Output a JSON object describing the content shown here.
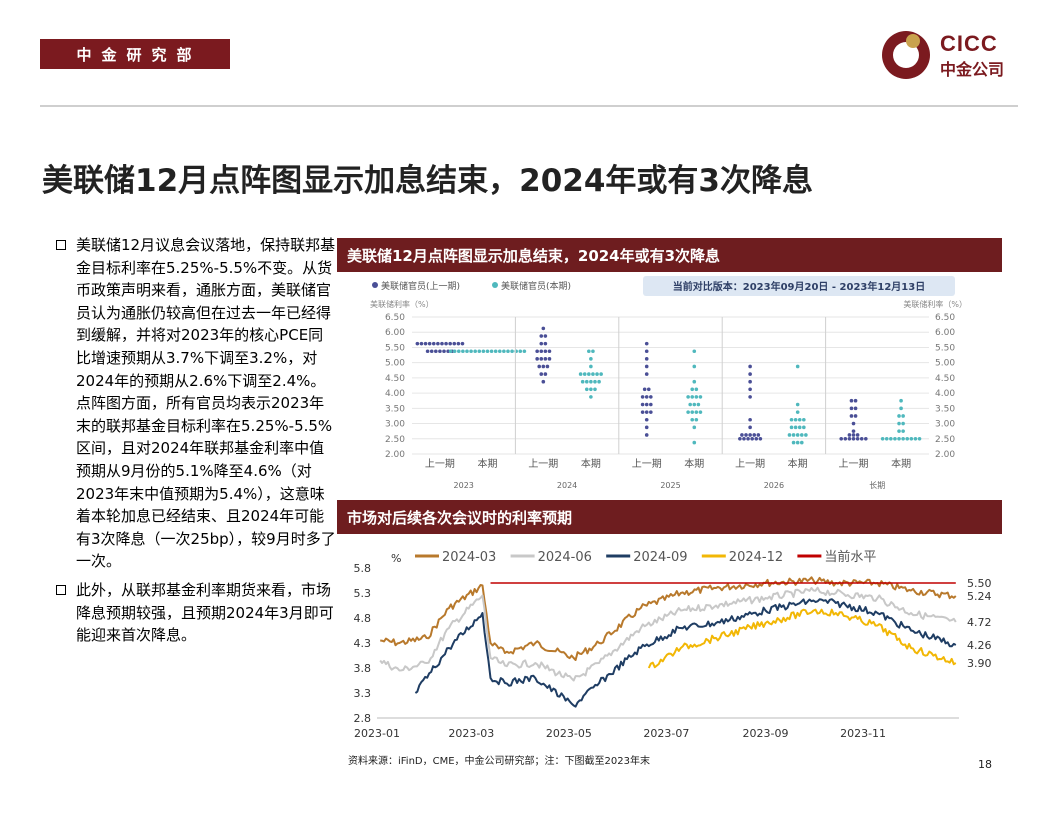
{
  "header": {
    "dept": "中金研究部",
    "logo_en": "CICC",
    "logo_cn": "中金公司",
    "title": "美联储12月点阵图显示加息结束，2024年或有3次降息"
  },
  "bullets": [
    "美联储12月议息会议落地，保持联邦基金目标利率在5.25%-5.5%不变。从货币政策声明来看，通胀方面，美联储官员认为通胀仍较高但在过去一年已经得到缓解，并将对2023年的核心PCE同比增速预期从3.7%下调至3.2%，对2024年的预期从2.6%下调至2.4%。点阵图方面，所有官员均表示2023年末的联邦基金目标利率在5.25%-5.5%区间，且对2024年联邦基金利率中值预期从9月份的5.1%降至4.6%（对2023年末中值预期为5.4%），这意味着本轮加息已经结束、且2024年可能有3次降息（一次25bp），较9月时多了一次。",
    "此外，从联邦基金利率期货来看，市场降息预期较强，且预期2024年3月即可能迎来首次降息。"
  ],
  "panel1": {
    "title": "美联储12月点阵图显示加息结束，2024年或有3次降息"
  },
  "panel2": {
    "title": "市场对后续各次会议时的利率预期"
  },
  "source": "资料来源：iFinD，CME，中金公司研究部；注：下图截至2023年末",
  "page_number": "18",
  "chart_data": [
    {
      "type": "scatter",
      "legend": [
        "美联储官员(上一期)",
        "美联储官员(本期)"
      ],
      "legend_position": "top-left",
      "version_note": "当前对比版本：2023年09月20日 - 2023年12月13日",
      "ylabel_left": "美联储利率（%）",
      "ylabel_right": "美联储利率（%）",
      "ylim": [
        2.0,
        6.5
      ],
      "yticks": [
        "6.50",
        "6.00",
        "5.50",
        "5.00",
        "4.50",
        "4.00",
        "3.50",
        "3.00",
        "2.50",
        "2.00"
      ],
      "groups": [
        "2023",
        "2024",
        "2025",
        "2026",
        "长期"
      ],
      "sub_labels": [
        "上一期",
        "本期"
      ],
      "colors": {
        "prev": "#4a4f96",
        "curr": "#4fb8bd"
      },
      "dots": {
        "2023": {
          "prev": [
            [
              5.625,
              12
            ],
            [
              5.375,
              7
            ]
          ],
          "curr": [
            [
              5.375,
              19
            ]
          ]
        },
        "2024": {
          "prev": [
            [
              6.125,
              1
            ],
            [
              5.875,
              2
            ],
            [
              5.625,
              2
            ],
            [
              5.375,
              4
            ],
            [
              5.125,
              4
            ],
            [
              4.875,
              3
            ],
            [
              4.625,
              2
            ],
            [
              4.375,
              1
            ]
          ],
          "curr": [
            [
              5.375,
              2
            ],
            [
              5.125,
              1
            ],
            [
              4.875,
              1
            ],
            [
              4.625,
              6
            ],
            [
              4.375,
              5
            ],
            [
              4.125,
              3
            ],
            [
              3.875,
              1
            ]
          ]
        },
        "2025": {
          "prev": [
            [
              5.625,
              1
            ],
            [
              5.375,
              1
            ],
            [
              5.125,
              1
            ],
            [
              4.875,
              1
            ],
            [
              4.625,
              1
            ],
            [
              4.125,
              2
            ],
            [
              3.875,
              3
            ],
            [
              3.625,
              3
            ],
            [
              3.375,
              3
            ],
            [
              3.125,
              1
            ],
            [
              2.875,
              1
            ],
            [
              2.625,
              1
            ]
          ],
          "curr": [
            [
              5.375,
              1
            ],
            [
              4.875,
              1
            ],
            [
              4.375,
              1
            ],
            [
              4.125,
              2
            ],
            [
              3.875,
              4
            ],
            [
              3.625,
              3
            ],
            [
              3.375,
              4
            ],
            [
              3.125,
              2
            ],
            [
              2.875,
              1
            ],
            [
              2.375,
              1
            ]
          ]
        },
        "2026": {
          "prev": [
            [
              4.875,
              1
            ],
            [
              4.625,
              1
            ],
            [
              4.375,
              1
            ],
            [
              4.125,
              1
            ],
            [
              3.875,
              1
            ],
            [
              3.125,
              1
            ],
            [
              2.875,
              1
            ],
            [
              2.625,
              5
            ],
            [
              2.5,
              6
            ]
          ],
          "curr": [
            [
              4.875,
              1
            ],
            [
              3.625,
              1
            ],
            [
              3.375,
              1
            ],
            [
              3.125,
              4
            ],
            [
              2.875,
              4
            ],
            [
              2.625,
              5
            ],
            [
              2.375,
              3
            ]
          ]
        },
        "长期": {
          "prev": [
            [
              3.75,
              2
            ],
            [
              3.5,
              2
            ],
            [
              3.25,
              2
            ],
            [
              3.0,
              1
            ],
            [
              2.75,
              1
            ],
            [
              2.625,
              3
            ],
            [
              2.5,
              7
            ]
          ],
          "curr": [
            [
              3.75,
              1
            ],
            [
              3.5,
              1
            ],
            [
              3.25,
              2
            ],
            [
              3.0,
              2
            ],
            [
              2.75,
              2
            ],
            [
              2.5,
              10
            ]
          ]
        }
      }
    },
    {
      "type": "line",
      "yunit": "%",
      "ylim": [
        2.8,
        5.8
      ],
      "yticks": [
        "5.8",
        "5.3",
        "4.8",
        "4.3",
        "3.8",
        "3.3",
        "2.8"
      ],
      "xlim": [
        "2023-01-01",
        "2023-12-31"
      ],
      "xticks": [
        "2023-01",
        "2023-03",
        "2023-05",
        "2023-07",
        "2023-09",
        "2023-11"
      ],
      "legend_position": "top",
      "series": [
        {
          "name": "2024-03",
          "color": "#b8792c",
          "end_label": "5.24",
          "points": [
            [
              "2023-01-03",
              4.35
            ],
            [
              "2023-01-15",
              4.3
            ],
            [
              "2023-02-01",
              4.4
            ],
            [
              "2023-02-15",
              5.0
            ],
            [
              "2023-03-08",
              5.45
            ],
            [
              "2023-03-13",
              4.3
            ],
            [
              "2023-03-22",
              4.1
            ],
            [
              "2023-04-10",
              4.3
            ],
            [
              "2023-05-04",
              4.0
            ],
            [
              "2023-05-20",
              4.3
            ],
            [
              "2023-06-15",
              5.0
            ],
            [
              "2023-07-10",
              5.3
            ],
            [
              "2023-08-01",
              5.4
            ],
            [
              "2023-09-01",
              5.5
            ],
            [
              "2023-10-01",
              5.55
            ],
            [
              "2023-10-15",
              5.5
            ],
            [
              "2023-11-10",
              5.5
            ],
            [
              "2023-12-01",
              5.35
            ],
            [
              "2023-12-29",
              5.24
            ]
          ]
        },
        {
          "name": "2024-06",
          "color": "#c8c8c8",
          "end_label": "4.72",
          "points": [
            [
              "2023-01-03",
              3.95
            ],
            [
              "2023-01-15",
              3.75
            ],
            [
              "2023-02-01",
              3.9
            ],
            [
              "2023-02-15",
              4.6
            ],
            [
              "2023-03-08",
              5.25
            ],
            [
              "2023-03-13",
              4.0
            ],
            [
              "2023-03-22",
              3.85
            ],
            [
              "2023-04-10",
              3.9
            ],
            [
              "2023-05-04",
              3.55
            ],
            [
              "2023-05-20",
              3.9
            ],
            [
              "2023-06-15",
              4.6
            ],
            [
              "2023-07-10",
              4.95
            ],
            [
              "2023-08-01",
              5.05
            ],
            [
              "2023-09-01",
              5.2
            ],
            [
              "2023-10-01",
              5.35
            ],
            [
              "2023-10-15",
              5.3
            ],
            [
              "2023-11-10",
              5.2
            ],
            [
              "2023-12-01",
              4.9
            ],
            [
              "2023-12-29",
              4.72
            ]
          ]
        },
        {
          "name": "2024-09",
          "color": "#1f3d63",
          "end_label": "4.26",
          "points": [
            [
              "2023-01-25",
              3.3
            ],
            [
              "2023-02-15",
              4.2
            ],
            [
              "2023-03-08",
              4.9
            ],
            [
              "2023-03-13",
              3.6
            ],
            [
              "2023-03-22",
              3.5
            ],
            [
              "2023-04-10",
              3.6
            ],
            [
              "2023-05-04",
              3.05
            ],
            [
              "2023-05-20",
              3.5
            ],
            [
              "2023-06-15",
              4.2
            ],
            [
              "2023-07-10",
              4.6
            ],
            [
              "2023-08-01",
              4.7
            ],
            [
              "2023-09-01",
              4.95
            ],
            [
              "2023-10-01",
              5.15
            ],
            [
              "2023-10-15",
              5.1
            ],
            [
              "2023-11-10",
              4.9
            ],
            [
              "2023-12-01",
              4.55
            ],
            [
              "2023-12-29",
              4.26
            ]
          ]
        },
        {
          "name": "2024-12",
          "color": "#f2b705",
          "end_label": "3.90",
          "points": [
            [
              "2023-06-20",
              3.8
            ],
            [
              "2023-07-10",
              4.2
            ],
            [
              "2023-08-01",
              4.4
            ],
            [
              "2023-09-01",
              4.7
            ],
            [
              "2023-10-01",
              4.95
            ],
            [
              "2023-10-15",
              4.9
            ],
            [
              "2023-11-10",
              4.65
            ],
            [
              "2023-12-01",
              4.2
            ],
            [
              "2023-12-29",
              3.9
            ]
          ]
        },
        {
          "name": "当前水平",
          "color": "#c00000",
          "end_label": "5.50",
          "points": [
            [
              "2023-03-13",
              5.5
            ],
            [
              "2023-12-29",
              5.5
            ]
          ]
        }
      ]
    }
  ]
}
